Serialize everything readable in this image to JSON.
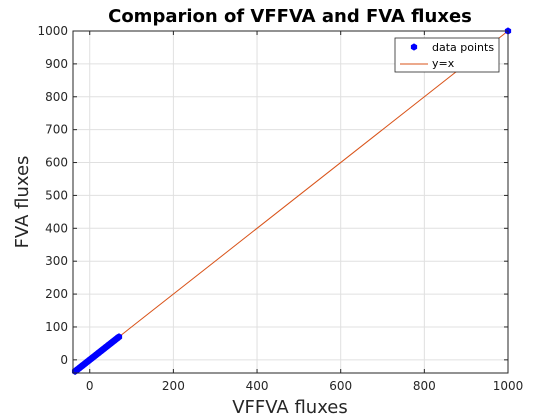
{
  "chart_data": {
    "type": "scatter",
    "title": "Comparion of VFFVA and FVA fluxes",
    "xlabel": "VFFVA fluxes",
    "ylabel": "FVA fluxes",
    "xlim": [
      -40,
      1000
    ],
    "ylim": [
      -40,
      1000
    ],
    "xticks": [
      0,
      200,
      400,
      600,
      800,
      1000
    ],
    "yticks": [
      0,
      100,
      200,
      300,
      400,
      500,
      600,
      700,
      800,
      900,
      1000
    ],
    "grid": true,
    "legend_position": "top-right",
    "colors": {
      "points": "#0000ff",
      "line": "#d95319",
      "grid": "#e0e0e0",
      "axes": "#262626"
    },
    "series": [
      {
        "name": "data points",
        "kind": "scatter",
        "marker": "hexagon",
        "x": [
          -35,
          -32,
          -30,
          -28,
          -26,
          -24,
          -22,
          -20,
          -18,
          -16,
          -14,
          -12,
          -10,
          -8,
          -6,
          -4,
          -2,
          0,
          2,
          4,
          6,
          8,
          10,
          12,
          14,
          16,
          18,
          20,
          22,
          24,
          26,
          28,
          30,
          32,
          34,
          36,
          38,
          40,
          42,
          44,
          46,
          48,
          50,
          52,
          54,
          56,
          58,
          60,
          62,
          64,
          66,
          68,
          70,
          1000
        ],
        "y": [
          -35,
          -32,
          -30,
          -28,
          -26,
          -24,
          -22,
          -20,
          -18,
          -16,
          -14,
          -12,
          -10,
          -8,
          -6,
          -4,
          -2,
          0,
          2,
          4,
          6,
          8,
          10,
          12,
          14,
          16,
          18,
          20,
          22,
          24,
          26,
          28,
          30,
          32,
          34,
          36,
          38,
          40,
          42,
          44,
          46,
          48,
          50,
          52,
          54,
          56,
          58,
          60,
          62,
          64,
          66,
          68,
          70,
          1000
        ]
      },
      {
        "name": "y=x",
        "kind": "line",
        "x": [
          -40,
          1000
        ],
        "y": [
          -40,
          1000
        ]
      }
    ]
  }
}
